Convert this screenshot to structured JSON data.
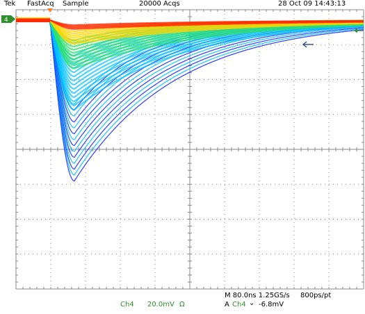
{
  "header": {
    "brand": "Tek",
    "mode": "FastAcq",
    "acq_mode": "Sample",
    "acquisitions": "20000 Acqs",
    "timestamp": "28 Oct 09 14:43:13"
  },
  "channel_marker": "4",
  "footer": {
    "channel": "Ch4",
    "volts_per_div": "20.0mV",
    "impedance_symbol": "Ω",
    "timebase": "M 80.0ns 1.25GS/s",
    "resolution": "800ps/pt",
    "trigger_prefix": "A",
    "trigger_channel": "Ch4",
    "trigger_slope_symbol": "⌄",
    "trigger_level": "-6.8mV"
  },
  "colors": {
    "background": "#ffffff",
    "grid": "#8a8a8a",
    "channel4": "#2f8f2f",
    "trigger_marker": "#ff7f2a",
    "cursor_arrow": "#2a4a8a",
    "persistence_hot": "#ff2a00",
    "persistence_warm": "#ffd400",
    "persistence_mid": "#2ee06a",
    "persistence_cool": "#00c0ff",
    "persistence_cold": "#1a2aff"
  }
}
